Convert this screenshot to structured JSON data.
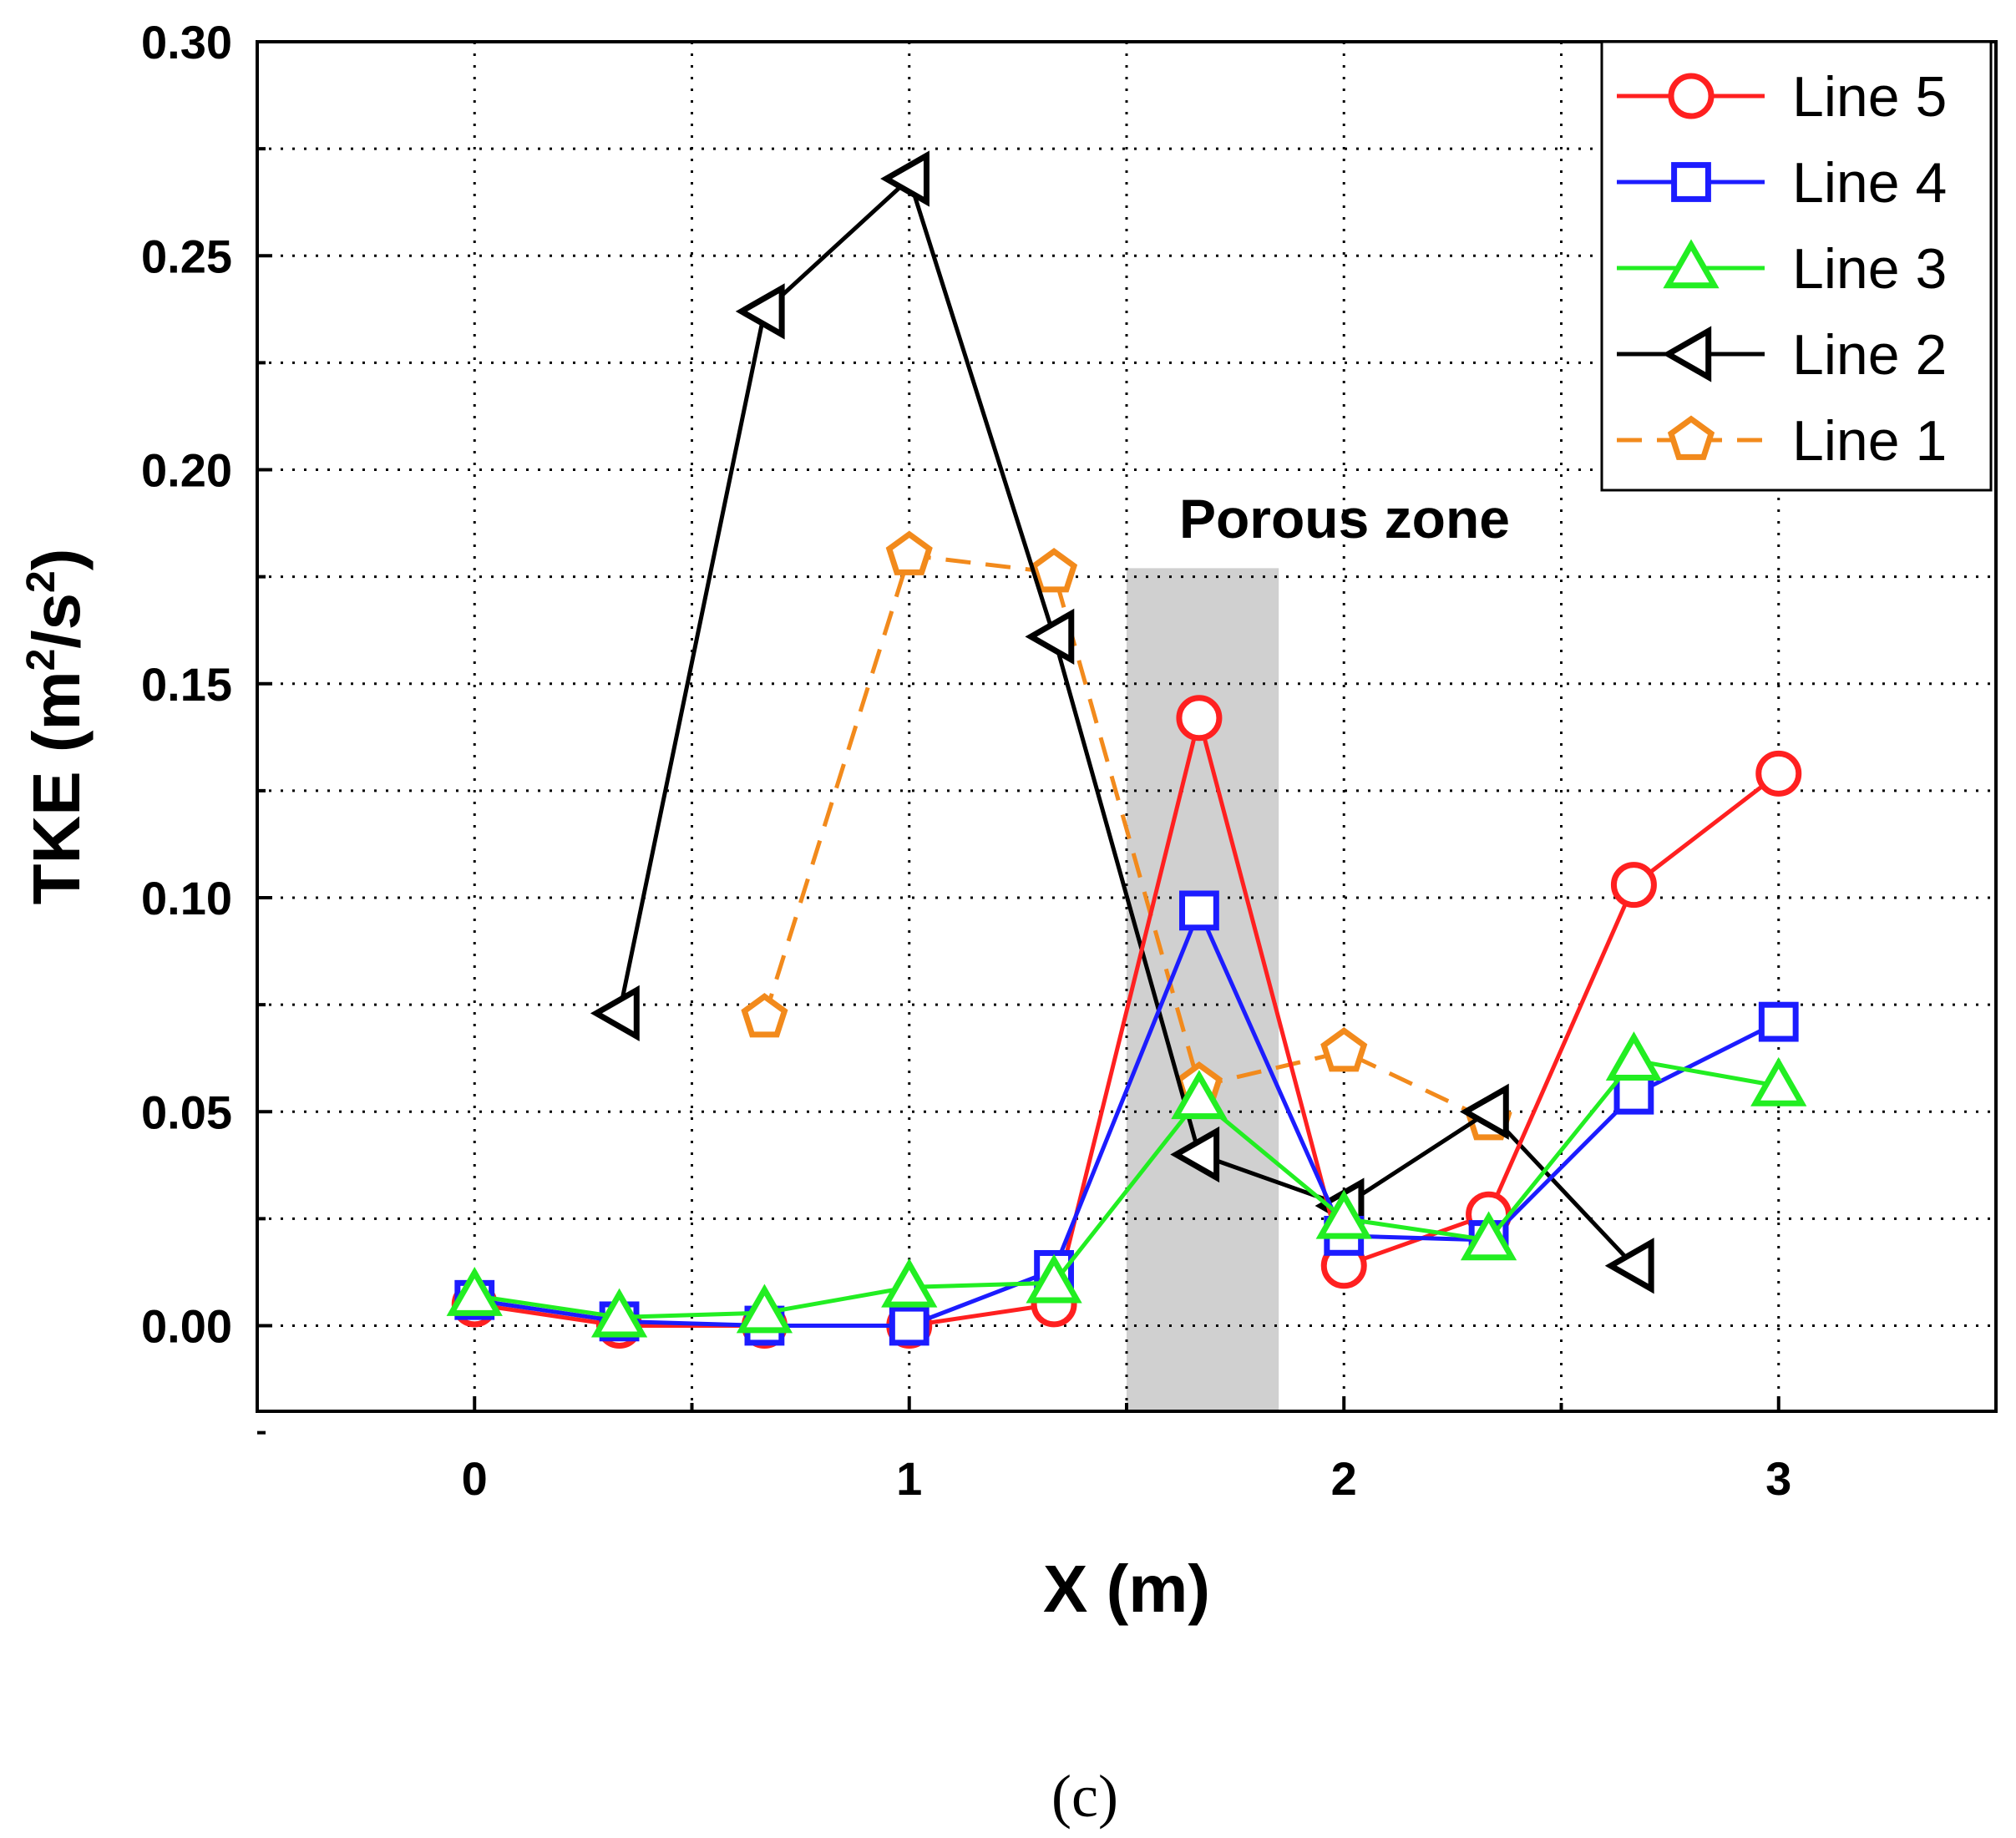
{
  "chart_data": {
    "type": "line",
    "title": "",
    "xlabel": "X (m)",
    "ylabel_main": "TKE (m",
    "ylabel_sup1": "2",
    "ylabel_mid": "/s",
    "ylabel_sup2": "2",
    "ylabel_end": ")",
    "xlim": [
      -0.5,
      3.5
    ],
    "ylim": [
      -0.02,
      0.3
    ],
    "xticks": [
      0,
      1,
      2,
      3
    ],
    "xtick_labels": [
      "0",
      "1",
      "2",
      "3"
    ],
    "yticks": [
      0.0,
      0.05,
      0.1,
      0.15,
      0.2,
      0.25,
      0.3
    ],
    "ytick_labels": [
      "0.00",
      "0.05",
      "0.10",
      "0.15",
      "0.20",
      "0.25",
      "0.30"
    ],
    "grid": true,
    "legend_position": "top-right",
    "porous_zone": {
      "x_start": 1.5,
      "x_end": 1.85,
      "y_top": 0.177,
      "label": "Porous zone",
      "color": "#d0d0d0"
    },
    "series": [
      {
        "name": "Line 5",
        "color": "#ff2020",
        "marker": "circle",
        "dashed": false,
        "x": [
          0,
          0.333,
          0.667,
          1.0,
          1.333,
          1.667,
          2.0,
          2.333,
          2.667,
          3.0
        ],
        "y": [
          0.005,
          0.0,
          0.0,
          0.0,
          0.005,
          0.142,
          0.014,
          0.026,
          0.103,
          0.129
        ]
      },
      {
        "name": "Line 4",
        "color": "#1c1cff",
        "marker": "square",
        "dashed": false,
        "x": [
          0,
          0.333,
          0.667,
          1.0,
          1.333,
          1.667,
          2.0,
          2.333,
          2.667,
          3.0
        ],
        "y": [
          0.006,
          0.001,
          0.0,
          0.0,
          0.013,
          0.097,
          0.021,
          0.02,
          0.054,
          0.071
        ]
      },
      {
        "name": "Line 3",
        "color": "#22ee22",
        "marker": "triangle-up",
        "dashed": false,
        "x": [
          0,
          0.333,
          0.667,
          1.0,
          1.333,
          1.667,
          2.0,
          2.333,
          2.667,
          3.0
        ],
        "y": [
          0.007,
          0.002,
          0.003,
          0.009,
          0.01,
          0.053,
          0.025,
          0.02,
          0.062,
          0.056
        ]
      },
      {
        "name": "Line 2",
        "color": "#000000",
        "marker": "triangle-left",
        "dashed": false,
        "x": [
          0.333,
          0.667,
          1.0,
          1.333,
          1.667,
          2.0,
          2.333,
          2.667
        ],
        "y": [
          0.073,
          0.237,
          0.268,
          0.161,
          0.04,
          0.028,
          0.05,
          0.014
        ]
      },
      {
        "name": "Line 1",
        "color": "#f28a1c",
        "marker": "pentagon",
        "dashed": true,
        "x": [
          0.667,
          1.0,
          1.333,
          1.667,
          2.0,
          2.333
        ],
        "y": [
          0.072,
          0.18,
          0.176,
          0.056,
          0.064,
          0.048
        ]
      }
    ]
  },
  "caption": "(c)"
}
